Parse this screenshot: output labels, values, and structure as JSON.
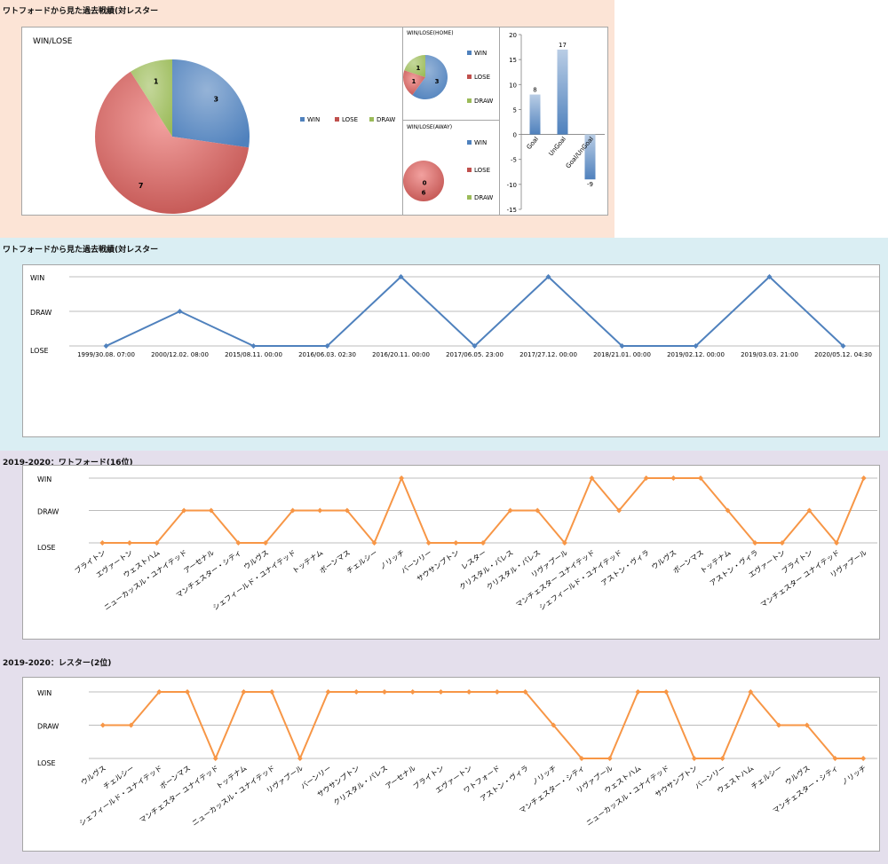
{
  "sections": {
    "s1": "ワトフォードから見た過去戦績(対レスター",
    "s2": "ワトフォードから見た過去戦績(対レスター",
    "s3": "2019-2020：ワトフォード(16位)",
    "s4": "2019-2020：レスター(2位)"
  },
  "colors": {
    "win": "#4f81bd",
    "lose": "#c0504d",
    "draw": "#9bbb59",
    "history_line": "#4f81bd",
    "season_line": "#f79646",
    "grid": "#a6a6a6"
  },
  "chart_data": [
    {
      "id": "pie-total",
      "type": "pie",
      "title": "WIN/LOSE",
      "labels": [
        "WIN",
        "LOSE",
        "DRAW"
      ],
      "values": [
        3,
        7,
        1
      ],
      "legend": "right"
    },
    {
      "id": "pie-home",
      "type": "pie",
      "title": "WIN/LOSE(HOME)",
      "labels": [
        "WIN",
        "LOSE",
        "DRAW"
      ],
      "values": [
        3,
        1,
        1
      ],
      "legend": "right"
    },
    {
      "id": "pie-away",
      "type": "pie",
      "title": "WIN/LOSE(AWAY)",
      "labels": [
        "WIN",
        "LOSE",
        "DRAW"
      ],
      "values": [
        0,
        6,
        0
      ],
      "legend": "right"
    },
    {
      "id": "bar-goals",
      "type": "bar",
      "categories": [
        "Goal",
        "UnGoal",
        "Goal/UnGoal"
      ],
      "values": [
        8,
        17,
        -9
      ],
      "ylim": [
        -15,
        20
      ],
      "yticks": [
        -15,
        -10,
        -5,
        0,
        5,
        10,
        15,
        20
      ],
      "grid": false
    },
    {
      "id": "line-history",
      "type": "line",
      "yticks": [
        "LOSE",
        "DRAW",
        "WIN"
      ],
      "x": [
        "1999/30.08. 07:00",
        "2000/12.02. 08:00",
        "2015/08.11. 00:00",
        "2016/06.03. 02:30",
        "2016/20.11. 00:00",
        "2017/06.05. 23:00",
        "2017/27.12. 00:00",
        "2018/21.01. 00:00",
        "2019/02.12. 00:00",
        "2019/03.03. 21:00",
        "2020/05.12. 04:30"
      ],
      "values": [
        0,
        1,
        0,
        0,
        2,
        0,
        2,
        0,
        0,
        2,
        0
      ]
    },
    {
      "id": "line-watford",
      "type": "line",
      "yticks": [
        "LOSE",
        "DRAW",
        "WIN"
      ],
      "x": [
        "ブライトン",
        "エヴァートン",
        "ウェストハム",
        "ニューカッスル・ユナイテッド",
        "アーセナル",
        "マンチェスター・シティ",
        "ウルヴス",
        "シェフィールド・ユナイテッド",
        "トッテナム",
        "ボーンマス",
        "チェルシー",
        "ノリッチ",
        "バーンリー",
        "サウサンプトン",
        "レスター",
        "クリスタル・パレス",
        "クリスタル・パレス",
        "リヴァプール",
        "マンチェスター ユナイテッド",
        "シェフィールド・ユナイテッド",
        "アストン・ヴィラ",
        "ウルヴス",
        "ボーンマス",
        "トッテナム",
        "アストン・ヴィラ",
        "エヴァートン",
        "ブライトン",
        "マンチェスター ユナイテッド",
        "リヴァプール"
      ],
      "values": [
        0,
        0,
        0,
        1,
        1,
        0,
        0,
        1,
        1,
        1,
        0,
        2,
        0,
        0,
        0,
        1,
        1,
        0,
        2,
        1,
        2,
        2,
        2,
        1,
        0,
        0,
        1,
        0,
        2
      ]
    },
    {
      "id": "line-leicester",
      "type": "line",
      "yticks": [
        "LOSE",
        "DRAW",
        "WIN"
      ],
      "x": [
        "ウルヴス",
        "チェルシー",
        "シェフィールド・ユナイテッド",
        "ボーンマス",
        "マンチェスター ユナイテッド",
        "トッテナム",
        "ニューカッスル・ユナイテッド",
        "リヴァプール",
        "バーンリー",
        "サウサンプトン",
        "クリスタル・パレス",
        "アーセナル",
        "ブライトン",
        "エヴァートン",
        "ワトフォード",
        "アストン・ヴィラ",
        "ノリッチ",
        "マンチェスター・シティ",
        "リヴァプール",
        "ウェストハム",
        "ニューカッスル・ユナイテッド",
        "サウサンプトン",
        "バーンリー",
        "ウェストハム",
        "チェルシー",
        "ウルヴス",
        "マンチェスター・シティ",
        "ノリッチ"
      ],
      "values": [
        1,
        1,
        2,
        2,
        0,
        2,
        2,
        0,
        2,
        2,
        2,
        2,
        2,
        2,
        2,
        2,
        1,
        0,
        0,
        2,
        2,
        0,
        0,
        2,
        1,
        1,
        0,
        0
      ]
    }
  ]
}
